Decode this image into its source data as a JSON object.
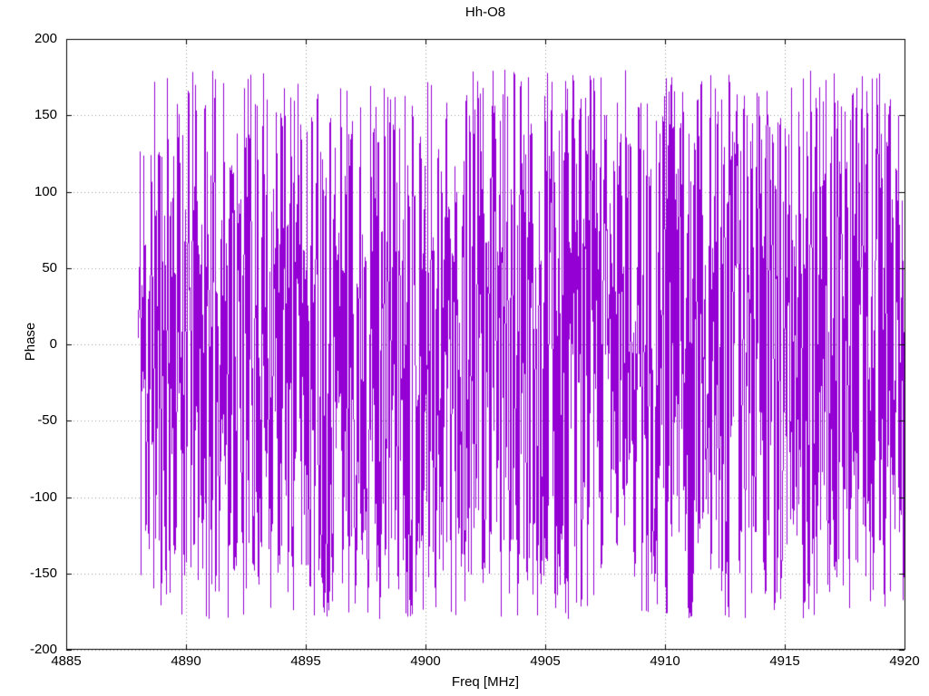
{
  "page": {
    "background": "#ffffff",
    "foreground": "#000000"
  },
  "chart_data": {
    "type": "line",
    "title": "Hh-O8",
    "xlabel": "Freq [MHz]",
    "ylabel": "Phase",
    "xlim": [
      4885,
      4920
    ],
    "ylim": [
      -200,
      200
    ],
    "x_ticks": [
      4885,
      4890,
      4895,
      4900,
      4905,
      4910,
      4915,
      4920
    ],
    "y_ticks": [
      200,
      150,
      100,
      50,
      0,
      -50,
      -100,
      -150,
      -200
    ],
    "grid": {
      "show": true,
      "style": "dotted",
      "color": "#9e9e9e"
    },
    "axes_color": "#000000",
    "legend": "none",
    "series": [
      {
        "name": "phase",
        "color": "#9400d3",
        "plot_style": "lines",
        "description": "wrapped phase noise, values uniformly scattered between -180 and +180 degrees",
        "x_start": 4888.0,
        "x_end": 4920.0,
        "n_points": 1500,
        "y_min": -180,
        "y_max": 180,
        "distribution": "uniform",
        "seed": 11
      }
    ]
  }
}
